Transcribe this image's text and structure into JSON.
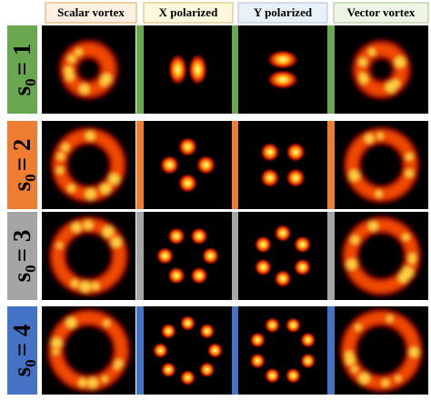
{
  "columns": [
    "Scalar vortex",
    "X polarized",
    "Y polarized",
    "Vector vortex"
  ],
  "rows": [
    {
      "symbol": "s",
      "subscript": "0",
      "equals": "= 1"
    },
    {
      "symbol": "s",
      "subscript": "0",
      "equals": "= 2"
    },
    {
      "symbol": "s",
      "subscript": "0",
      "equals": "= 3"
    },
    {
      "symbol": "s",
      "subscript": "0",
      "equals": "= 4"
    }
  ]
}
